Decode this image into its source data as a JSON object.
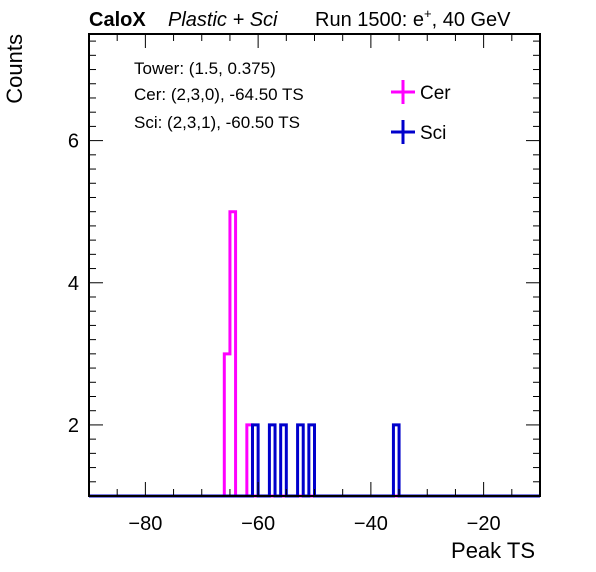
{
  "title": {
    "experiment": "CaloX",
    "config": "Plastic + Sci",
    "run": "Run 1500: e",
    "run_sup": "+",
    "energy": ", 40 GeV"
  },
  "info_lines": [
    "Tower: (1.5, 0.375)",
    "Cer: (2,3,0), -64.50 TS",
    "Sci: (2,3,1), -60.50 TS"
  ],
  "chart_data": {
    "type": "histogram",
    "xlabel": "Peak TS",
    "ylabel": "Counts",
    "xlim": [
      -90,
      -10
    ],
    "ylim": [
      1,
      7.5
    ],
    "x_ticks": [
      -80,
      -60,
      -40,
      -20
    ],
    "x_tick_labels": [
      "−80",
      "−60",
      "−40",
      "−20"
    ],
    "y_ticks": [
      2,
      4,
      6
    ],
    "y_tick_labels": [
      "2",
      "4",
      "6"
    ],
    "legend_position": "top-right",
    "series": [
      {
        "name": "Cer",
        "color": "#ff00ff",
        "bins": [
          {
            "low": -66,
            "high": -65,
            "count": 3
          },
          {
            "low": -65,
            "high": -64,
            "count": 5
          },
          {
            "low": -62,
            "high": -61,
            "count": 2
          }
        ]
      },
      {
        "name": "Sci",
        "color": "#0000cc",
        "bins": [
          {
            "low": -61,
            "high": -60,
            "count": 2
          },
          {
            "low": -58,
            "high": -57,
            "count": 2
          },
          {
            "low": -56,
            "high": -55,
            "count": 2
          },
          {
            "low": -53,
            "high": -52,
            "count": 2
          },
          {
            "low": -51,
            "high": -50,
            "count": 2
          },
          {
            "low": -36,
            "high": -35,
            "count": 2
          }
        ]
      }
    ]
  }
}
